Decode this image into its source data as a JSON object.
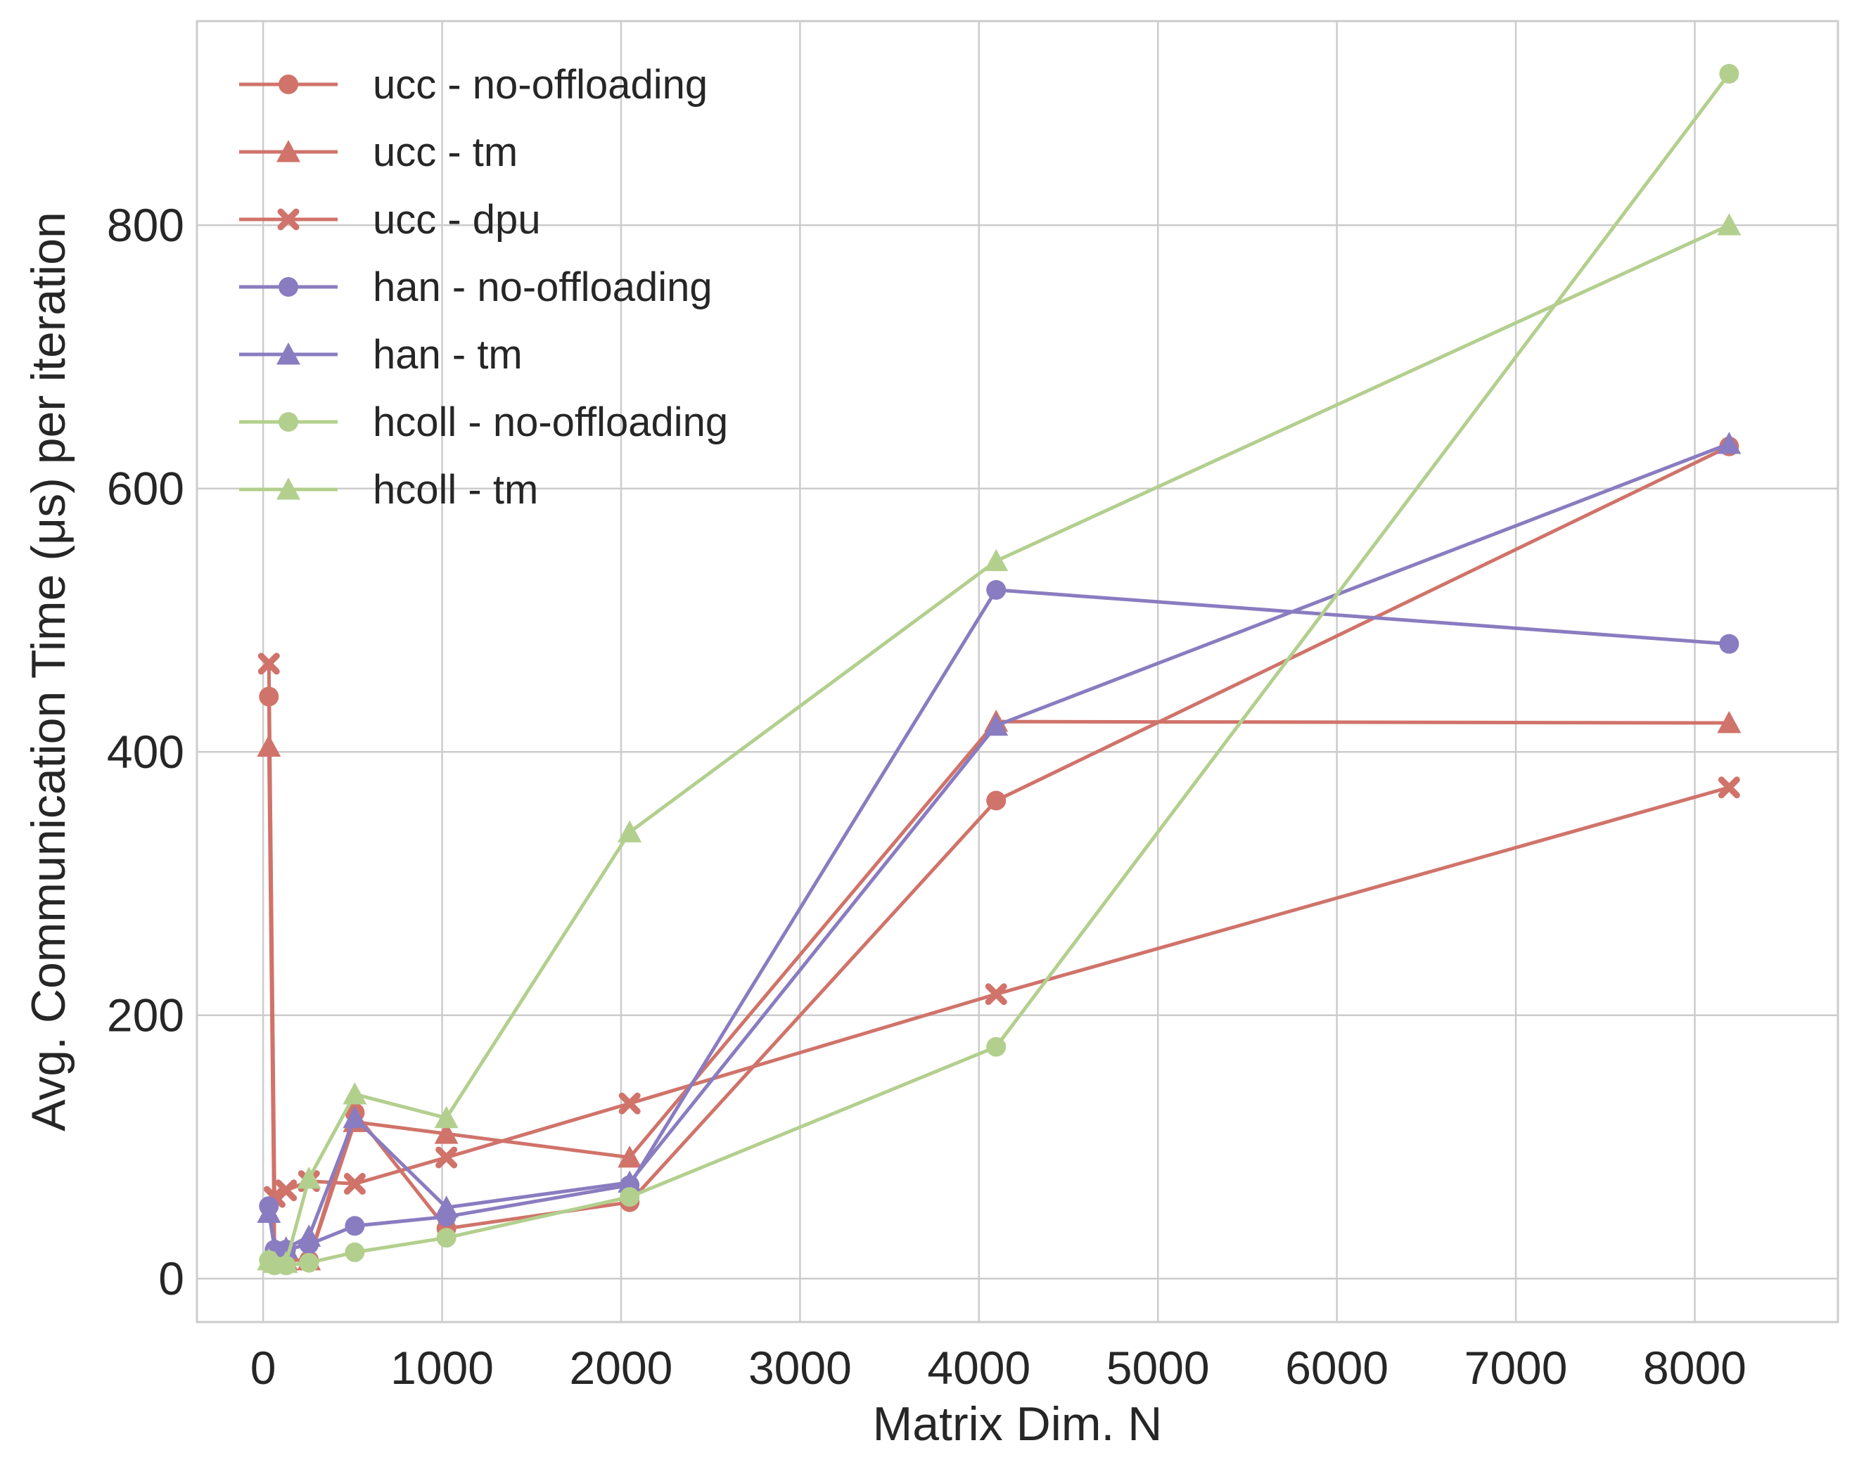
{
  "chart_data": {
    "type": "line",
    "xlabel": "Matrix Dim. N",
    "ylabel": "Avg. Communication Time (μs) per iteration",
    "xlim": [
      -370,
      8800
    ],
    "ylim": [
      -33,
      955
    ],
    "xticks": [
      0,
      1000,
      2000,
      3000,
      4000,
      5000,
      6000,
      7000,
      8000
    ],
    "yticks": [
      0,
      200,
      400,
      600,
      800
    ],
    "grid": true,
    "legend_position": "top-left",
    "colors": {
      "ucc": "#d0736a",
      "han": "#8a7cc0",
      "hcoll": "#b3cf8e"
    },
    "series": [
      {
        "name": "ucc - no-offloading",
        "family": "ucc",
        "marker": "circle",
        "x": [
          32,
          64,
          128,
          256,
          512,
          1024,
          2048,
          4096,
          8192
        ],
        "y": [
          442,
          14,
          14,
          14,
          126,
          38,
          58,
          363,
          632
        ]
      },
      {
        "name": "ucc - tm",
        "family": "ucc",
        "marker": "triangle",
        "x": [
          32,
          64,
          128,
          256,
          512,
          1024,
          2048,
          4096,
          8192
        ],
        "y": [
          404,
          14,
          14,
          14,
          119,
          110,
          92,
          423,
          422
        ]
      },
      {
        "name": "ucc - dpu",
        "family": "ucc",
        "marker": "x",
        "x": [
          32,
          64,
          128,
          256,
          512,
          1024,
          2048,
          4096,
          8192
        ],
        "y": [
          467,
          62,
          67,
          74,
          72,
          92,
          133,
          216,
          373
        ]
      },
      {
        "name": "han - no-offloading",
        "family": "han",
        "marker": "circle",
        "x": [
          32,
          64,
          128,
          256,
          512,
          1024,
          2048,
          4096,
          8192
        ],
        "y": [
          55,
          22,
          22,
          26,
          40,
          47,
          71,
          523,
          482
        ]
      },
      {
        "name": "han - tm",
        "family": "han",
        "marker": "triangle",
        "x": [
          32,
          64,
          128,
          256,
          512,
          1024,
          2048,
          4096,
          8192
        ],
        "y": [
          50,
          23,
          23,
          32,
          122,
          54,
          73,
          420,
          634
        ]
      },
      {
        "name": "hcoll - no-offloading",
        "family": "hcoll",
        "marker": "circle",
        "x": [
          32,
          64,
          128,
          256,
          512,
          1024,
          2048,
          4096,
          8192
        ],
        "y": [
          14,
          10,
          10,
          12,
          20,
          31,
          62,
          176,
          915
        ]
      },
      {
        "name": "hcoll - tm",
        "family": "hcoll",
        "marker": "triangle",
        "x": [
          32,
          64,
          128,
          256,
          512,
          1024,
          2048,
          4096,
          8192
        ],
        "y": [
          14,
          12,
          12,
          76,
          140,
          122,
          339,
          545,
          800
        ]
      }
    ]
  }
}
